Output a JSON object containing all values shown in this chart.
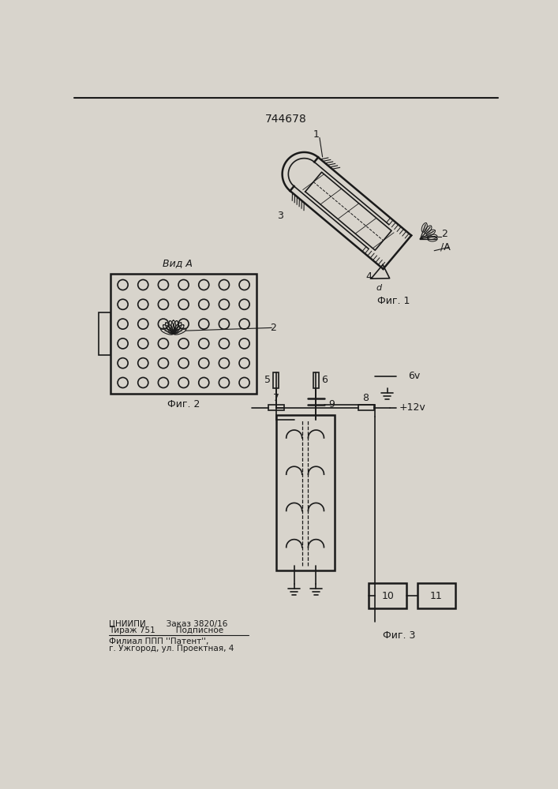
{
  "patent_number": "744678",
  "bg_color": "#d8d4cc",
  "line_color": "#1a1a1a",
  "fig1_label": "Фиг. 1",
  "fig2_label": "Фиг. 2",
  "fig3_label": "Фиг. 3",
  "vid_a_label": "Вид А",
  "label_1": "1",
  "label_2": "2",
  "label_3": "3",
  "label_4": "4",
  "label_d": "d",
  "label_A": "A",
  "label_5": "5",
  "label_6": "6",
  "label_7": "7",
  "label_8": "8",
  "label_9": "9",
  "label_10": "10",
  "label_11": "11",
  "label_plus12v": "+12v",
  "label_6v": "6v",
  "footer_line1": "ЦНИИПИ        Заказ 3820/16",
  "footer_line2": "Тираж 751        Подписное",
  "footer_line3": "Филиал ППП ''Патент'',",
  "footer_line4": "г. Ужгород, ул. Проектная, 4"
}
